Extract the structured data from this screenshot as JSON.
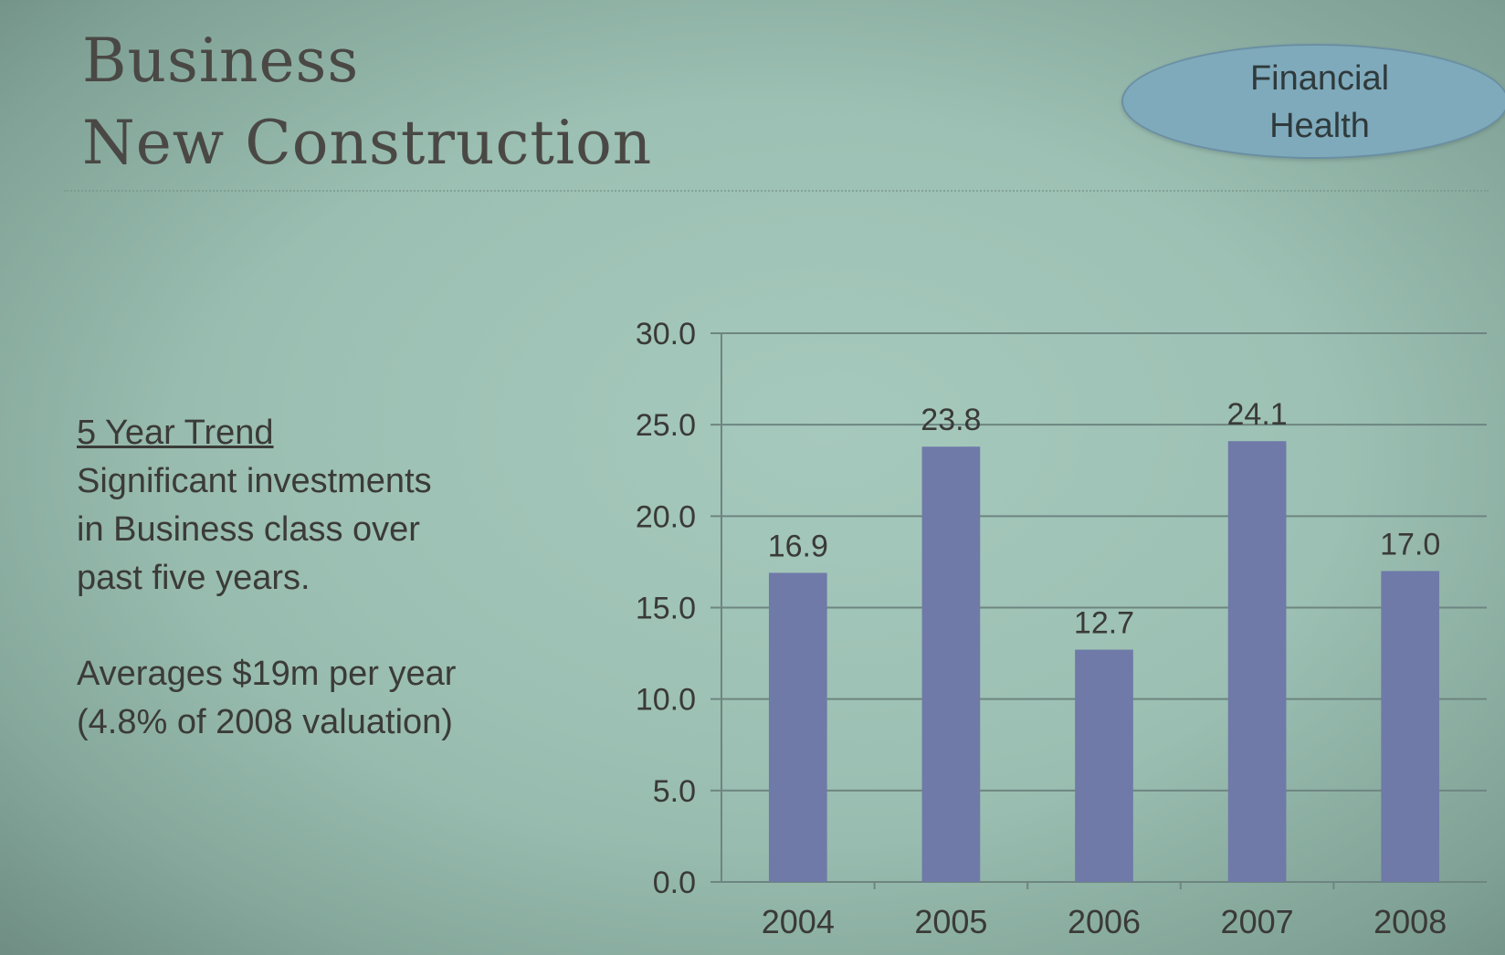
{
  "slide": {
    "title_line1": "Business",
    "title_line2": "New Construction",
    "badge_line1": "Financial",
    "badge_line2": "Health"
  },
  "sidebar": {
    "heading": "5 Year Trend",
    "paragraph1": "Significant investments in Business class over past five years.",
    "paragraph2": "Averages $19m per year (4.8% of 2008 valuation)"
  },
  "colors": {
    "bar": "#6f7aa8",
    "background": "#9cc0b3",
    "badge": "#7faabb"
  },
  "chart_data": {
    "type": "bar",
    "categories": [
      "2004",
      "2005",
      "2006",
      "2007",
      "2008"
    ],
    "values": [
      16.9,
      23.8,
      12.7,
      24.1,
      17.0
    ],
    "value_labels": [
      "16.9",
      "23.8",
      "12.7",
      "24.1",
      "17.0"
    ],
    "ylim": [
      0,
      30
    ],
    "yticks": [
      "0.0",
      "5.0",
      "10.0",
      "15.0",
      "20.0",
      "25.0",
      "30.0"
    ],
    "grid": true,
    "title": "",
    "xlabel": "",
    "ylabel": ""
  }
}
